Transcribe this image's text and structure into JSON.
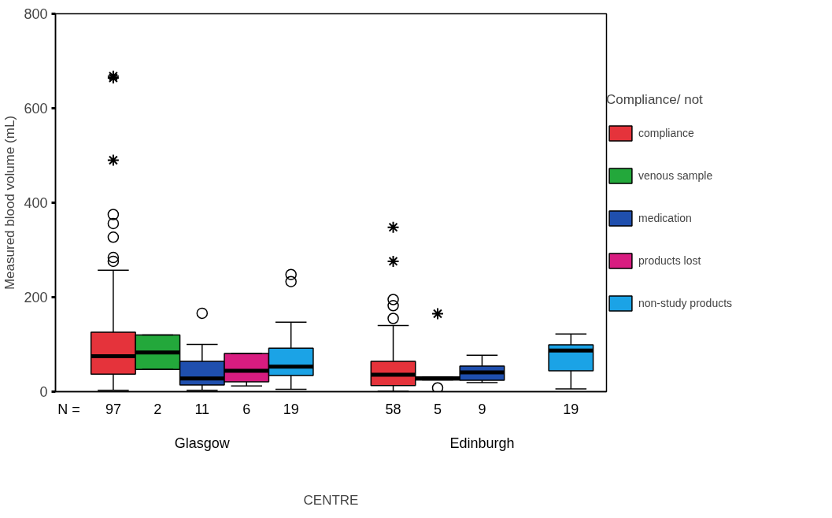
{
  "chart_data": {
    "type": "box",
    "xlabel": "CENTRE",
    "ylabel": "Measured blood volume (mL)",
    "legend_title": "Compliance/ not",
    "legend": "right",
    "categories": [
      "Glasgow",
      "Edinburgh"
    ],
    "ylim": [
      0,
      800
    ],
    "yticks": [
      0,
      200,
      400,
      600,
      800
    ],
    "annotations": [
      "N ="
    ],
    "series": [
      {
        "name": "compliance",
        "color": "#e5333b",
        "value_labels": [
          "97",
          "58"
        ],
        "boxes": [
          {
            "low": 3,
            "q1": 37,
            "median": 75,
            "q3": 126,
            "high": 257,
            "outliers": [
              276,
              284,
              327,
              356,
              375,
              490,
              664,
              668
            ]
          },
          {
            "low": 1,
            "q1": 13,
            "median": 36,
            "q3": 64,
            "high": 140,
            "outliers": [
              155,
              182,
              195,
              276,
              348
            ]
          }
        ]
      },
      {
        "name": "venous sample",
        "color": "#23a83b",
        "value_labels": [
          "2",
          "5"
        ],
        "boxes": [
          {
            "low": 47,
            "q1": 47,
            "median": 83,
            "q3": 120,
            "high": 120
          },
          {
            "low": 25,
            "q1": 25,
            "median": 28,
            "q3": 31,
            "high": 31,
            "outliers": [
              8,
              165
            ]
          }
        ]
      },
      {
        "name": "medication",
        "color": "#1f4fae",
        "value_labels": [
          "11",
          "9"
        ],
        "boxes": [
          {
            "low": 3,
            "q1": 14,
            "median": 28,
            "q3": 64,
            "high": 100,
            "outliers": [
              166
            ]
          },
          {
            "low": 19,
            "q1": 24,
            "median": 41,
            "q3": 54,
            "high": 77
          }
        ]
      },
      {
        "name": "products lost",
        "color": "#d81c80",
        "value_labels": [
          "6",
          null
        ],
        "boxes": [
          {
            "low": 12,
            "q1": 21,
            "median": 44,
            "q3": 81,
            "high": 81
          },
          null
        ]
      },
      {
        "name": "non-study products",
        "color": "#1ba3e6",
        "value_labels": [
          "19",
          "19"
        ],
        "boxes": [
          {
            "low": 5,
            "q1": 34,
            "median": 53,
            "q3": 92,
            "high": 147,
            "outliers": [
              233,
              248
            ]
          },
          {
            "low": 6,
            "q1": 44,
            "median": 87,
            "q3": 99,
            "high": 122
          }
        ]
      }
    ]
  }
}
